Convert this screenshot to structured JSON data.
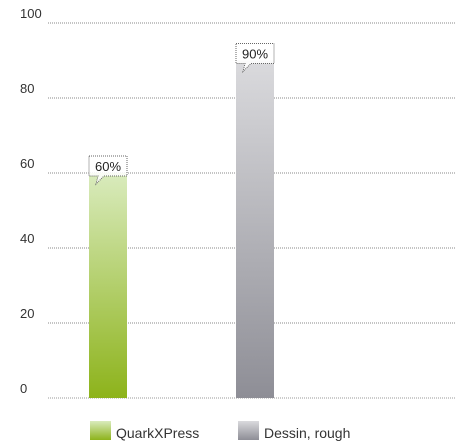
{
  "chart_data": {
    "type": "bar",
    "categories": [
      "QuarkXPress",
      "Dessin, rough"
    ],
    "series": [
      {
        "name": "QuarkXPress",
        "values": [
          60,
          null
        ],
        "color_top": "#d9ebbd",
        "color_bottom": "#8db31b"
      },
      {
        "name": "Dessin, rough",
        "values": [
          null,
          90
        ],
        "color_top": "#dadadd",
        "color_bottom": "#8e8e96"
      }
    ],
    "data_labels": [
      "60%",
      "90%"
    ],
    "yticks": [
      "0",
      "20",
      "40",
      "60",
      "80",
      "100"
    ],
    "ylim": [
      0,
      100
    ],
    "grid": true,
    "legend": "bottom",
    "title": "",
    "xlabel": "",
    "ylabel": ""
  }
}
